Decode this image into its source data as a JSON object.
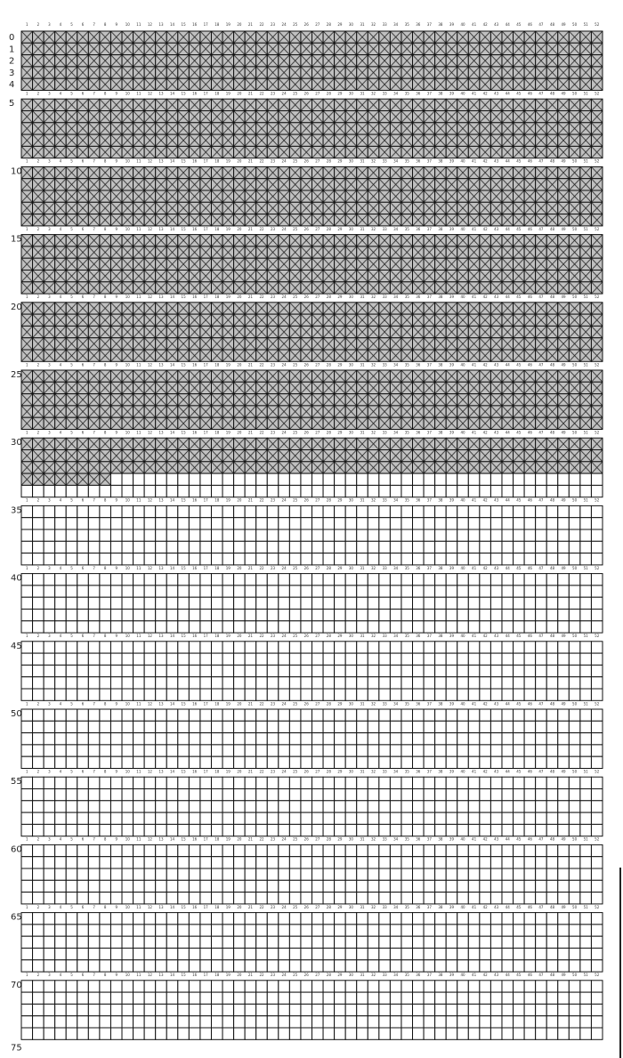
{
  "chart_data": {
    "type": "heatmap",
    "columns": [
      1,
      2,
      3,
      4,
      5,
      6,
      7,
      8,
      9,
      10,
      11,
      12,
      13,
      14,
      15,
      16,
      17,
      18,
      19,
      20,
      21,
      22,
      23,
      24,
      25,
      26,
      27,
      28,
      29,
      30,
      31,
      32,
      33,
      34,
      35,
      36,
      37,
      38,
      39,
      40,
      41,
      42,
      43,
      44,
      45,
      46,
      47,
      48,
      49,
      50,
      51,
      52
    ],
    "rows": {
      "start": 0,
      "end": 74,
      "block_size": 5
    },
    "row_tick_labels": [
      "0",
      "1",
      "2",
      "3",
      "4",
      "5",
      "10",
      "15",
      "20",
      "25",
      "30",
      "35",
      "40",
      "45",
      "50",
      "55",
      "60",
      "65",
      "70",
      "75"
    ],
    "filled": {
      "full_rows_through": 32,
      "partial_row": 33,
      "partial_row_filled_columns": 8
    },
    "grid": true,
    "colors": {
      "filled": "#c0c0c0",
      "empty": "#ffffff",
      "line": "#111111"
    }
  }
}
